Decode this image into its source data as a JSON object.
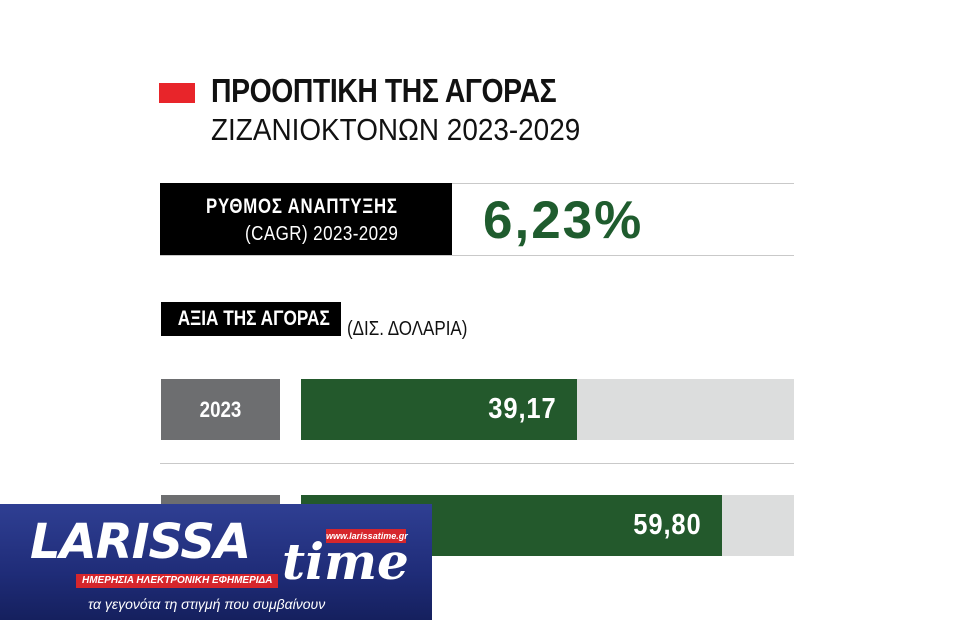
{
  "title": "ΠΡΟΟΠΤΙΚΗ ΤΗΣ ΑΓΟΡΑΣ",
  "subtitle": "ΖΙΖΑΝΙΟΚΤΟΝΩΝ 2023-2029",
  "cagr": {
    "label_line1": "ΡΥΘΜΟΣ ΑΝΑΠΤΥΞΗΣ",
    "label_line2": "(CAGR) 2023-2029",
    "value": "6,23%"
  },
  "market_value": {
    "label": "ΑΞΙΑ ΤΗΣ ΑΓΟΡΑΣ",
    "unit": "(ΔΙΣ. ΔΟΛΑΡΙΑ)"
  },
  "colors": {
    "accent_red": "#e8252a",
    "bar_green": "#23592c",
    "cagr_green": "#1f5c2e",
    "year_gray": "#6d6e70",
    "track_gray": "#dcdddd"
  },
  "chart_data": {
    "type": "bar",
    "orientation": "horizontal",
    "categories": [
      "2023",
      ""
    ],
    "values": [
      39.17,
      59.8
    ],
    "value_labels": [
      "39,17",
      "59,80"
    ],
    "xlim": [
      0,
      70
    ],
    "title": "ΠΡΟΟΠΤΙΚΗ ΤΗΣ ΑΓΟΡΑΣ ΖΙΖΑΝΙΟΚΤΟΝΩΝ 2023-2029",
    "ylabel": "ΑΞΙΑ ΤΗΣ ΑΓΟΡΑΣ",
    "xlabel": "(ΔΙΣ. ΔΟΛΑΡΙΑ)",
    "grid": false
  },
  "logo": {
    "wordmark": "LARISSA",
    "time": "time",
    "url": "www.larissatime.gr",
    "tagline": "ΗΜΕΡΗΣΙΑ ΗΛΕΚΤΡΟΝΙΚΗ ΕΦΗΜΕΡΙΔΑ",
    "slogan": "τα γεγονότα τη στιγμή που συμβαίνουν"
  }
}
